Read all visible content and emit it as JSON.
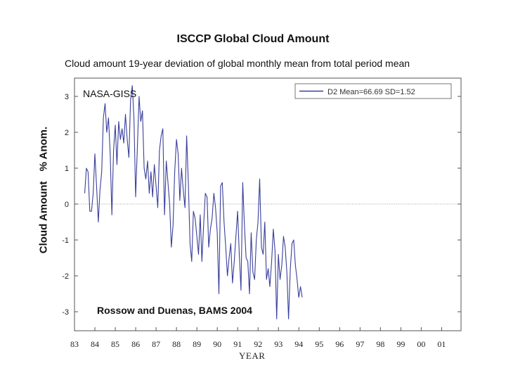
{
  "chart_data": {
    "type": "line",
    "title": "ISCCP Global Cloud Amount",
    "subtitle": "Cloud amount 19-year deviation of global monthly mean from total period mean",
    "ylabel_left": "Cloud Amount",
    "ylabel_right": "% Anom.",
    "xlabel": "YEAR",
    "annotation_top": "NASA-GISS",
    "annotation_bottom": "Rossow and Duenas, BAMS 2004",
    "legend": "D2 Mean=66.69 SD=1.52",
    "legend_position": "top-right",
    "ylim": [
      -3.5,
      3.5
    ],
    "xlim": [
      1983.0,
      2001.95
    ],
    "x_tick_labels": [
      "83",
      "84",
      "85",
      "86",
      "87",
      "88",
      "89",
      "90",
      "91",
      "92",
      "93",
      "94",
      "95",
      "96",
      "97",
      "98",
      "99",
      "00",
      "01"
    ],
    "y_tick_labels": [
      "3",
      "2",
      "1",
      "0",
      "-1",
      "-2",
      "-3"
    ],
    "zero_line": true,
    "line_color": "#3a3f9a",
    "series": [
      {
        "name": "D2 Mean=66.69 SD=1.52",
        "x_start": 1983.5,
        "x_step": 0.0833,
        "values": [
          0.3,
          1.0,
          0.9,
          -0.2,
          -0.2,
          0.3,
          1.4,
          0.5,
          -0.5,
          0.4,
          0.9,
          2.4,
          2.8,
          2.0,
          2.4,
          1.4,
          -0.3,
          1.5,
          2.2,
          1.1,
          2.3,
          1.8,
          2.1,
          1.7,
          2.5,
          1.8,
          1.3,
          2.9,
          3.3,
          2.4,
          0.2,
          1.6,
          3.0,
          2.3,
          2.6,
          1.0,
          0.7,
          1.2,
          0.3,
          0.9,
          0.2,
          1.1,
          0.5,
          -0.1,
          1.5,
          1.9,
          2.1,
          -0.3,
          1.2,
          0.6,
          0.0,
          -1.2,
          -0.6,
          0.9,
          1.8,
          1.4,
          0.1,
          1.0,
          0.4,
          -0.1,
          1.9,
          0.6,
          -1.1,
          -1.6,
          -0.2,
          -0.4,
          -0.9,
          -1.4,
          -0.3,
          -1.6,
          -0.6,
          0.3,
          0.2,
          -1.2,
          -0.7,
          -0.4,
          0.3,
          -0.1,
          -0.8,
          -2.5,
          0.5,
          0.6,
          -0.5,
          -1.2,
          -2.0,
          -1.5,
          -1.1,
          -2.2,
          -1.6,
          -0.9,
          -0.2,
          -1.4,
          -2.4,
          0.6,
          -0.6,
          -1.5,
          -1.6,
          -2.5,
          -0.8,
          -1.9,
          -2.1,
          -1.0,
          -0.5,
          0.7,
          -1.2,
          -1.4,
          -0.5,
          -2.1,
          -1.8,
          -2.3,
          -1.6,
          -0.7,
          -1.3,
          -3.2,
          -1.4,
          -2.1,
          -1.7,
          -0.9,
          -1.2,
          -1.9,
          -3.2,
          -1.8,
          -1.1,
          -1.0,
          -1.7,
          -2.1,
          -2.6,
          -2.3,
          -2.6
        ]
      }
    ]
  }
}
